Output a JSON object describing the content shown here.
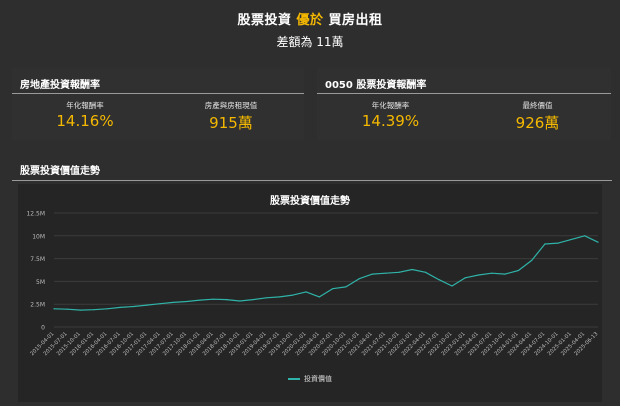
{
  "header": {
    "title_pre": "股票投資 ",
    "title_highlight": "優於",
    "title_post": " 買房出租",
    "subtitle": "差額為 11萬"
  },
  "cards": {
    "real_estate": {
      "title": "房地產投資報酬率",
      "metric1_label": "年化報酬率",
      "metric1_value": "14.16%",
      "metric2_label": "房產與房租現值",
      "metric2_value": "915萬"
    },
    "etf": {
      "title": "0050 股票投資報酬率",
      "metric1_label": "年化報酬率",
      "metric1_value": "14.39%",
      "metric2_label": "最終價值",
      "metric2_value": "926萬"
    }
  },
  "trend": {
    "section_title": "股票投資價值走勢"
  },
  "colors": {
    "accent": "#f5b800",
    "line": "#2fb3a8",
    "background": "#2e2e2e",
    "panel": "#252525"
  },
  "chart_data": {
    "type": "line",
    "title": "股票投資價值走勢",
    "xlabel": "",
    "ylabel": "",
    "ylim": [
      0,
      12500000
    ],
    "yticks": [
      0,
      2500000,
      5000000,
      7500000,
      10000000,
      12500000
    ],
    "ytick_labels": [
      "0",
      "2.5M",
      "5M",
      "7.5M",
      "10M",
      "12.5M"
    ],
    "grid": true,
    "legend_position": "bottom",
    "x_tick_labels": [
      "2015-04-01",
      "2015-07-01",
      "2015-10-01",
      "2016-01-01",
      "2016-04-01",
      "2016-07-01",
      "2016-10-01",
      "2017-01-01",
      "2017-04-01",
      "2017-07-01",
      "2017-10-01",
      "2018-01-01",
      "2018-04-01",
      "2018-07-01",
      "2018-10-01",
      "2019-01-01",
      "2019-04-01",
      "2019-07-01",
      "2019-10-01",
      "2020-01-01",
      "2020-04-01",
      "2020-07-01",
      "2020-10-01",
      "2021-01-01",
      "2021-04-01",
      "2021-07-01",
      "2021-10-01",
      "2022-01-01",
      "2022-04-01",
      "2022-07-01",
      "2022-10-01",
      "2023-01-01",
      "2023-04-01",
      "2023-07-01",
      "2023-10-01",
      "2024-01-01",
      "2024-04-01",
      "2024-07-01",
      "2024-10-01",
      "2025-01-01",
      "2025-04-01",
      "2025-06-13"
    ],
    "series": [
      {
        "name": "投資價值",
        "x": [
          "2015-04-01",
          "2015-07-01",
          "2015-10-01",
          "2016-01-01",
          "2016-04-01",
          "2016-07-01",
          "2016-10-01",
          "2017-01-01",
          "2017-04-01",
          "2017-07-01",
          "2017-10-01",
          "2018-01-01",
          "2018-04-01",
          "2018-07-01",
          "2018-10-01",
          "2019-01-01",
          "2019-04-01",
          "2019-07-01",
          "2019-10-01",
          "2020-01-01",
          "2020-04-01",
          "2020-07-01",
          "2020-10-01",
          "2021-01-01",
          "2021-04-01",
          "2021-07-01",
          "2021-10-01",
          "2022-01-01",
          "2022-04-01",
          "2022-07-01",
          "2022-10-01",
          "2023-01-01",
          "2023-04-01",
          "2023-07-01",
          "2023-10-01",
          "2024-01-01",
          "2024-04-01",
          "2024-07-01",
          "2024-10-01",
          "2025-01-01",
          "2025-04-01",
          "2025-06-13"
        ],
        "values": [
          2000000,
          1950000,
          1850000,
          1900000,
          2000000,
          2150000,
          2250000,
          2400000,
          2550000,
          2700000,
          2800000,
          2950000,
          3050000,
          3000000,
          2850000,
          3000000,
          3200000,
          3300000,
          3500000,
          3850000,
          3300000,
          4200000,
          4400000,
          5300000,
          5800000,
          5900000,
          6000000,
          6300000,
          6000000,
          5200000,
          4500000,
          5400000,
          5700000,
          5900000,
          5800000,
          6200000,
          7300000,
          9100000,
          9200000,
          9600000,
          10000000,
          9300000
        ]
      }
    ]
  }
}
